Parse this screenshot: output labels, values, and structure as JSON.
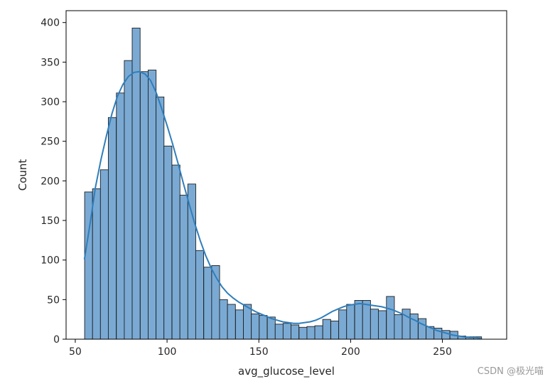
{
  "chart_data": {
    "type": "bar",
    "subtype": "histogram-with-kde",
    "title": "",
    "xlabel": "avg_glucose_level",
    "ylabel": "Count",
    "xlim": [
      45,
      285
    ],
    "ylim": [
      0,
      415
    ],
    "x_ticks": [
      50,
      100,
      150,
      200,
      250
    ],
    "y_ticks": [
      0,
      50,
      100,
      150,
      200,
      250,
      300,
      350,
      400
    ],
    "grid": false,
    "bar_color": "#7aaad4",
    "bar_edge_color": "#1f1f1f",
    "kde_color": "#2f7ebc",
    "bin_width": 4.33,
    "bins": [
      {
        "x": 55.1,
        "count": 186
      },
      {
        "x": 59.4,
        "count": 190
      },
      {
        "x": 63.7,
        "count": 214
      },
      {
        "x": 68.0,
        "count": 280
      },
      {
        "x": 72.4,
        "count": 311
      },
      {
        "x": 76.7,
        "count": 352
      },
      {
        "x": 81.0,
        "count": 393
      },
      {
        "x": 85.4,
        "count": 338
      },
      {
        "x": 89.7,
        "count": 340
      },
      {
        "x": 94.0,
        "count": 306
      },
      {
        "x": 98.3,
        "count": 244
      },
      {
        "x": 102.7,
        "count": 220
      },
      {
        "x": 107.0,
        "count": 182
      },
      {
        "x": 111.3,
        "count": 196
      },
      {
        "x": 115.6,
        "count": 112
      },
      {
        "x": 120.0,
        "count": 91
      },
      {
        "x": 124.3,
        "count": 93
      },
      {
        "x": 128.6,
        "count": 50
      },
      {
        "x": 132.9,
        "count": 44
      },
      {
        "x": 137.3,
        "count": 37
      },
      {
        "x": 141.6,
        "count": 44
      },
      {
        "x": 145.9,
        "count": 32
      },
      {
        "x": 150.2,
        "count": 30
      },
      {
        "x": 154.6,
        "count": 28
      },
      {
        "x": 158.9,
        "count": 19
      },
      {
        "x": 163.2,
        "count": 20
      },
      {
        "x": 167.5,
        "count": 18
      },
      {
        "x": 171.9,
        "count": 15
      },
      {
        "x": 176.2,
        "count": 16
      },
      {
        "x": 180.5,
        "count": 17
      },
      {
        "x": 184.8,
        "count": 25
      },
      {
        "x": 189.2,
        "count": 23
      },
      {
        "x": 193.5,
        "count": 37
      },
      {
        "x": 197.8,
        "count": 44
      },
      {
        "x": 202.2,
        "count": 49
      },
      {
        "x": 206.5,
        "count": 49
      },
      {
        "x": 210.8,
        "count": 38
      },
      {
        "x": 215.1,
        "count": 36
      },
      {
        "x": 219.5,
        "count": 54
      },
      {
        "x": 223.8,
        "count": 31
      },
      {
        "x": 228.1,
        "count": 38
      },
      {
        "x": 232.4,
        "count": 32
      },
      {
        "x": 236.8,
        "count": 26
      },
      {
        "x": 241.1,
        "count": 16
      },
      {
        "x": 245.4,
        "count": 14
      },
      {
        "x": 249.7,
        "count": 11
      },
      {
        "x": 254.1,
        "count": 10
      },
      {
        "x": 258.4,
        "count": 4
      },
      {
        "x": 262.7,
        "count": 3
      },
      {
        "x": 267.0,
        "count": 3
      }
    ],
    "kde": [
      [
        55,
        101
      ],
      [
        58,
        145
      ],
      [
        61,
        192
      ],
      [
        64,
        227
      ],
      [
        67,
        257
      ],
      [
        70,
        285
      ],
      [
        73,
        307
      ],
      [
        76,
        322
      ],
      [
        79,
        332
      ],
      [
        82,
        337
      ],
      [
        85,
        338
      ],
      [
        88,
        335
      ],
      [
        91,
        327
      ],
      [
        94,
        312
      ],
      [
        97,
        292
      ],
      [
        100,
        270
      ],
      [
        103,
        247
      ],
      [
        106,
        222
      ],
      [
        109,
        196
      ],
      [
        112,
        171
      ],
      [
        115,
        147
      ],
      [
        118,
        125
      ],
      [
        121,
        106
      ],
      [
        124,
        90
      ],
      [
        127,
        77
      ],
      [
        130,
        66
      ],
      [
        133,
        58
      ],
      [
        136,
        52
      ],
      [
        139,
        47
      ],
      [
        142,
        43
      ],
      [
        145,
        39
      ],
      [
        148,
        35
      ],
      [
        151,
        32
      ],
      [
        154,
        29
      ],
      [
        157,
        26
      ],
      [
        160,
        24
      ],
      [
        163,
        22
      ],
      [
        166,
        21
      ],
      [
        169,
        20
      ],
      [
        172,
        20
      ],
      [
        175,
        21
      ],
      [
        178,
        22
      ],
      [
        181,
        24
      ],
      [
        184,
        27
      ],
      [
        187,
        31
      ],
      [
        190,
        35
      ],
      [
        193,
        38
      ],
      [
        196,
        41
      ],
      [
        199,
        43
      ],
      [
        202,
        44
      ],
      [
        205,
        45
      ],
      [
        208,
        44
      ],
      [
        211,
        43
      ],
      [
        214,
        42
      ],
      [
        217,
        41
      ],
      [
        220,
        39
      ],
      [
        223,
        37
      ],
      [
        226,
        34
      ],
      [
        229,
        31
      ],
      [
        232,
        27
      ],
      [
        235,
        24
      ],
      [
        238,
        20
      ],
      [
        241,
        17
      ],
      [
        244,
        14
      ],
      [
        247,
        11
      ],
      [
        250,
        9
      ],
      [
        253,
        7
      ],
      [
        256,
        5
      ],
      [
        259,
        4
      ],
      [
        262,
        3
      ],
      [
        265,
        2
      ],
      [
        268,
        2
      ],
      [
        271,
        1
      ]
    ]
  },
  "watermark": "CSDN @极光喵"
}
